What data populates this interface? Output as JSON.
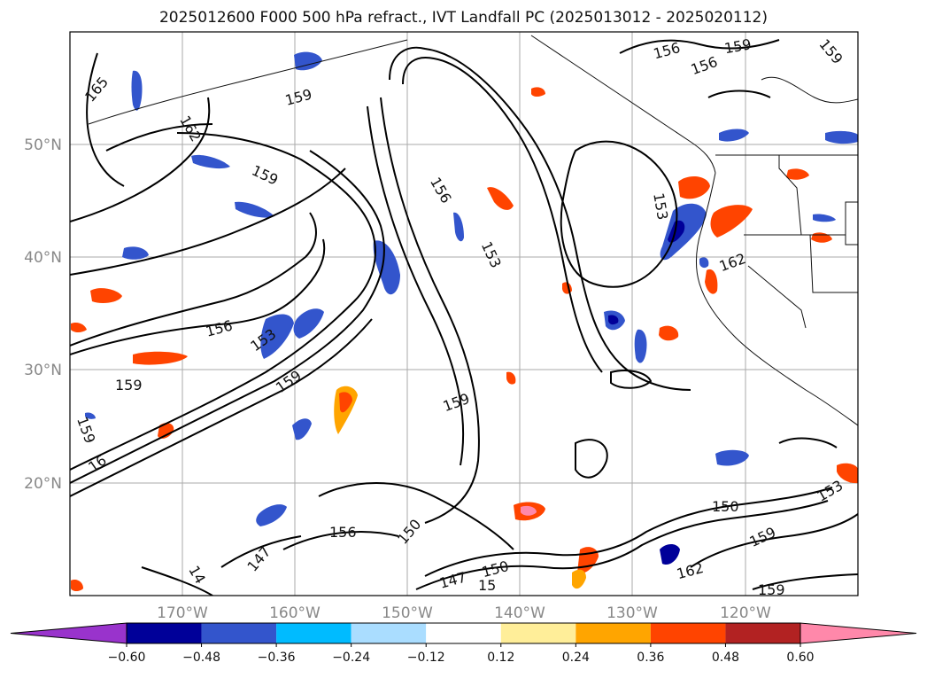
{
  "title": "2025012600 F000 500 hPa refract., IVT Landfall PC (2025013012 - 2025020112)",
  "map": {
    "lat_labels": [
      "50°N",
      "40°N",
      "30°N",
      "20°N"
    ],
    "lon_labels": [
      "170°W",
      "160°W",
      "150°W",
      "140°W",
      "130°W",
      "120°W"
    ],
    "contour_labels": [
      "165",
      "159",
      "162",
      "159",
      "156",
      "159",
      "156",
      "159",
      "153",
      "156",
      "153",
      "162",
      "156",
      "153",
      "159",
      "159",
      "159",
      "16",
      "159",
      "156",
      "150",
      "147",
      "14",
      "147",
      "150",
      "15",
      "162",
      "150",
      "153",
      "159",
      "159"
    ]
  },
  "colorbar": {
    "ticks": [
      "−0.60",
      "−0.48",
      "−0.36",
      "−0.24",
      "−0.12",
      "0.12",
      "0.24",
      "0.36",
      "0.48",
      "0.60"
    ],
    "colors": [
      "#9933cc",
      "#000099",
      "#3355cc",
      "#00bbff",
      "#aaddff",
      "#ffffff",
      "#ffee99",
      "#ffa500",
      "#ff4400",
      "#b22222",
      "#ff88aa"
    ]
  }
}
